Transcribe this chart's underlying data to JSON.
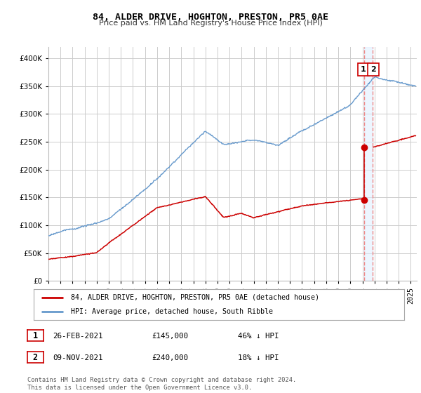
{
  "title": "84, ALDER DRIVE, HOGHTON, PRESTON, PR5 0AE",
  "subtitle": "Price paid vs. HM Land Registry's House Price Index (HPI)",
  "ylim": [
    0,
    420000
  ],
  "yticks": [
    0,
    50000,
    100000,
    150000,
    200000,
    250000,
    300000,
    350000,
    400000
  ],
  "xlim": [
    1995.0,
    2025.5
  ],
  "legend_label_red": "84, ALDER DRIVE, HOGHTON, PRESTON, PR5 0AE (detached house)",
  "legend_label_blue": "HPI: Average price, detached house, South Ribble",
  "annotation1_date": "26-FEB-2021",
  "annotation1_price": "£145,000",
  "annotation1_pct": "46% ↓ HPI",
  "annotation2_date": "09-NOV-2021",
  "annotation2_price": "£240,000",
  "annotation2_pct": "18% ↓ HPI",
  "footer": "Contains HM Land Registry data © Crown copyright and database right 2024.\nThis data is licensed under the Open Government Licence v3.0.",
  "sale1_x": 2021.12,
  "sale1_y": 145000,
  "sale2_x": 2021.85,
  "sale2_y": 240000,
  "red_color": "#cc0000",
  "blue_color": "#6699cc",
  "blue_fill": "#ddeeff",
  "vline_color": "#ee8888",
  "background_color": "#ffffff",
  "grid_color": "#cccccc"
}
